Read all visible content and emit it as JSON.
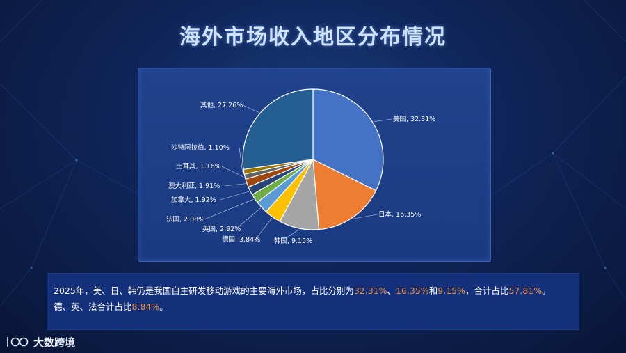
{
  "title": "海外市场收入地区分布情况",
  "chart_data": {
    "type": "pie",
    "categories": [
      "美国",
      "日本",
      "韩国",
      "德国",
      "英国",
      "法国",
      "加拿大",
      "澳大利亚",
      "土耳其",
      "沙特阿拉伯",
      "其他"
    ],
    "values": [
      32.31,
      16.35,
      9.15,
      3.84,
      2.92,
      2.08,
      1.92,
      1.91,
      1.16,
      1.1,
      27.26
    ],
    "labels": [
      "美国, 32.31%",
      "日本, 16.35%",
      "韩国, 9.15%",
      "德国, 3.84%",
      "英国, 2.92%",
      "法国, 2.08%",
      "加拿大, 1.92%",
      "澳大利亚, 1.91%",
      "土耳其, 1.16%",
      "沙特阿拉伯, 1.10%",
      "其他, 27.26%"
    ],
    "colors": [
      "#4472c4",
      "#ed7d31",
      "#a5a5a5",
      "#ffc000",
      "#5b9bd5",
      "#70ad47",
      "#264478",
      "#9e480e",
      "#636363",
      "#997300",
      "#255e91"
    ],
    "unit": "%"
  },
  "summary": {
    "part1": "2025年，美、日、韩仍是我国自主研发移动游戏的主要海外市场，占比分别为",
    "v1": "32.31%",
    "sep1": "、",
    "v2": "16.35%",
    "sep2": "和",
    "v3": "9.15%",
    "part2": "，合计占比",
    "v4": "57.81%",
    "part3": "。",
    "line2_text": "德、英、法合计占比",
    "v5": "8.84%",
    "line2_end": "。"
  },
  "logo": {
    "text": "大数跨境"
  },
  "colors": {
    "highlight": "#f0913a",
    "title": "#cfe2ff"
  }
}
